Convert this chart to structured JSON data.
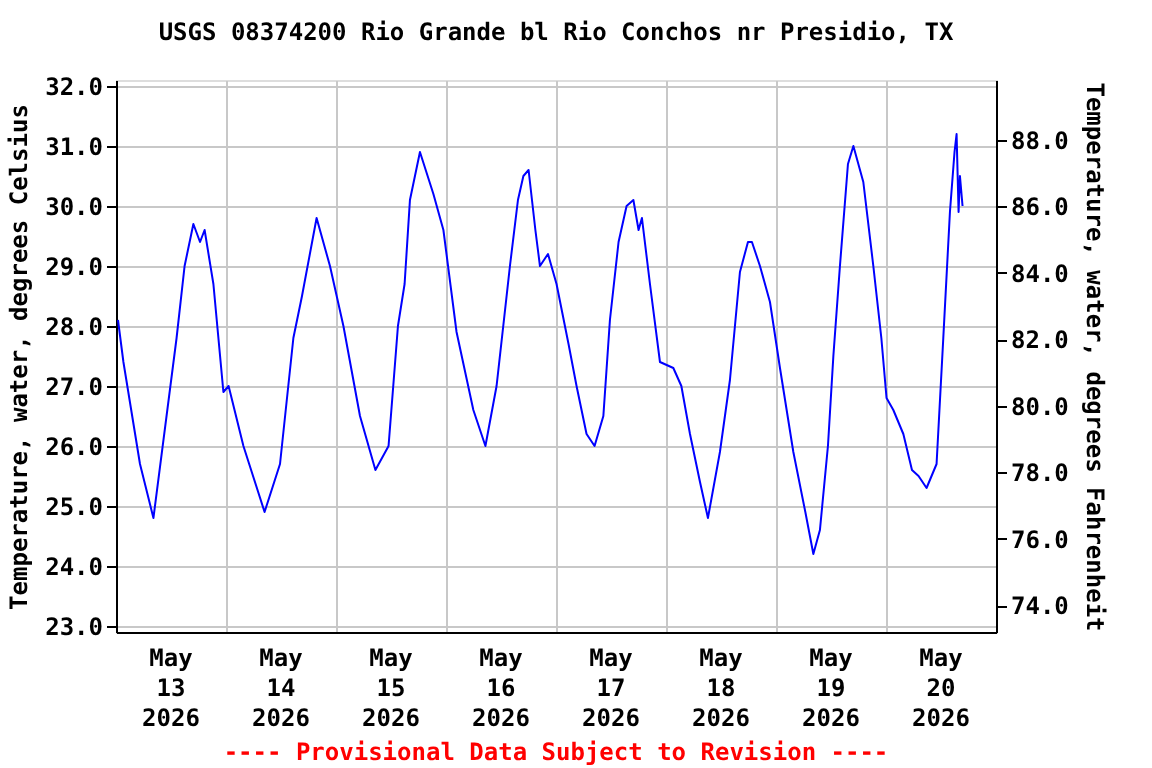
{
  "chart_data": {
    "type": "line",
    "title": "USGS 08374200 Rio Grande bl Rio Conchos nr Presidio, TX",
    "ylabel": "Temperature, water, degrees Celsius",
    "y2label": "Temperature, water, degrees Fahrenheit",
    "annotations": [
      "---- Provisional Data Subject to Revision ----"
    ],
    "grid": true,
    "legend": false,
    "xlim": [
      "2026-05-13T00:00",
      "2026-05-21T00:00"
    ],
    "xticks": [
      {
        "value": "2026-05-13T00:00",
        "label": null
      },
      {
        "value": "2026-05-14T00:00",
        "label": null
      },
      {
        "value": "2026-05-15T00:00",
        "label": null
      },
      {
        "value": "2026-05-16T00:00",
        "label": null
      },
      {
        "value": "2026-05-17T00:00",
        "label": null
      },
      {
        "value": "2026-05-18T00:00",
        "label": null
      },
      {
        "value": "2026-05-19T00:00",
        "label": null
      },
      {
        "value": "2026-05-20T00:00",
        "label": null
      },
      {
        "value": "2026-05-21T00:00",
        "label": null
      },
      {
        "value": "2026-05-13T12:00",
        "label": "May\n13\n2026"
      },
      {
        "value": "2026-05-14T12:00",
        "label": "May\n14\n2026"
      },
      {
        "value": "2026-05-15T12:00",
        "label": "May\n15\n2026"
      },
      {
        "value": "2026-05-16T12:00",
        "label": "May\n16\n2026"
      },
      {
        "value": "2026-05-17T12:00",
        "label": "May\n17\n2026"
      },
      {
        "value": "2026-05-18T12:00",
        "label": "May\n18\n2026"
      },
      {
        "value": "2026-05-19T12:00",
        "label": "May\n19\n2026"
      },
      {
        "value": "2026-05-20T12:00",
        "label": "May\n20\n2026"
      }
    ],
    "ylim": [
      22.9,
      32.1
    ],
    "yticks": [
      {
        "value": 23,
        "label": "23.0"
      },
      {
        "value": 24,
        "label": "24.0"
      },
      {
        "value": 25,
        "label": "25.0"
      },
      {
        "value": 26,
        "label": "26.0"
      },
      {
        "value": 27,
        "label": "27.0"
      },
      {
        "value": 28,
        "label": "28.0"
      },
      {
        "value": 29,
        "label": "29.0"
      },
      {
        "value": 30,
        "label": "30.0"
      },
      {
        "value": 31,
        "label": "31.0"
      },
      {
        "value": 32,
        "label": "32.0"
      }
    ],
    "y2lim": [
      73.2,
      89.8
    ],
    "y2ticks": [
      {
        "value": 74,
        "label": "74.0"
      },
      {
        "value": 76,
        "label": "76.0"
      },
      {
        "value": 78,
        "label": "78.0"
      },
      {
        "value": 80,
        "label": "80.0"
      },
      {
        "value": 82,
        "label": "82.0"
      },
      {
        "value": 84,
        "label": "84.0"
      },
      {
        "value": 86,
        "label": "86.0"
      },
      {
        "value": 88,
        "label": "88.0"
      }
    ],
    "series": [
      {
        "color": "#0000ff",
        "x": [
          "2026-05-13T00:26",
          "2026-05-13T01:37",
          "2026-05-13T05:14",
          "2026-05-13T08:10",
          "2026-05-13T13:13",
          "2026-05-13T14:58",
          "2026-05-13T16:53",
          "2026-05-13T18:20",
          "2026-05-13T19:20",
          "2026-05-13T21:15",
          "2026-05-13T23:26",
          "2026-05-14T00:34",
          "2026-05-14T03:48",
          "2026-05-14T08:25",
          "2026-05-14T11:47",
          "2026-05-14T14:42",
          "2026-05-14T16:35",
          "2026-05-14T19:46",
          "2026-05-14T22:41",
          "2026-05-15T01:37",
          "2026-05-15T05:14",
          "2026-05-15T08:36",
          "2026-05-15T11:28",
          "2026-05-15T13:31",
          "2026-05-15T14:58",
          "2026-05-15T16:08",
          "2026-05-15T18:19",
          "2026-05-15T21:15",
          "2026-05-15T23:26",
          "2026-05-16T02:18",
          "2026-05-16T05:58",
          "2026-05-16T08:36",
          "2026-05-16T11:02",
          "2026-05-16T13:57",
          "2026-05-16T15:42",
          "2026-05-16T16:53",
          "2026-05-16T18:01",
          "2026-05-16T19:30",
          "2026-05-16T20:30",
          "2026-05-16T22:15",
          "2026-05-17T00:07",
          "2026-05-17T02:44",
          "2026-05-17T04:29",
          "2026-05-17T06:40",
          "2026-05-17T08:25",
          "2026-05-17T10:20",
          "2026-05-17T11:46",
          "2026-05-17T13:39",
          "2026-05-17T15:24",
          "2026-05-17T16:53",
          "2026-05-17T18:01",
          "2026-05-17T18:45",
          "2026-05-17T20:30",
          "2026-05-17T22:41",
          "2026-05-18T01:36",
          "2026-05-18T03:21",
          "2026-05-18T05:14",
          "2026-05-18T07:25",
          "2026-05-18T09:09",
          "2026-05-18T11:46",
          "2026-05-18T13:57",
          "2026-05-18T16:08",
          "2026-05-18T17:53",
          "2026-05-18T18:45",
          "2026-05-18T20:30",
          "2026-05-18T22:41",
          "2026-05-19T00:52",
          "2026-05-19T03:47",
          "2026-05-19T06:24",
          "2026-05-19T08:09",
          "2026-05-19T09:35",
          "2026-05-19T11:20",
          "2026-05-19T12:31",
          "2026-05-19T13:57",
          "2026-05-19T15:42",
          "2026-05-19T16:53",
          "2026-05-19T19:03",
          "2026-05-19T21:14",
          "2026-05-19T22:59",
          "2026-05-20T00:07",
          "2026-05-20T01:36",
          "2026-05-20T03:47",
          "2026-05-20T05:40",
          "2026-05-20T07:06",
          "2026-05-20T08:51",
          "2026-05-20T11:02",
          "2026-05-20T12:30",
          "2026-05-20T13:57",
          "2026-05-20T14:57",
          "2026-05-20T15:24",
          "2026-05-20T15:50",
          "2026-05-20T16:08",
          "2026-05-20T16:42"
        ],
        "values": [
          28.1,
          27.4,
          25.7,
          24.8,
          27.8,
          29.0,
          29.7,
          29.4,
          29.6,
          28.7,
          26.9,
          27.0,
          26.0,
          24.9,
          25.7,
          27.8,
          28.5,
          29.8,
          29.0,
          28.0,
          26.5,
          25.6,
          26.0,
          28.0,
          28.7,
          30.1,
          30.9,
          30.2,
          29.6,
          27.9,
          26.6,
          26.0,
          27.0,
          29.0,
          30.1,
          30.5,
          30.6,
          29.6,
          29.0,
          29.2,
          28.7,
          27.7,
          27.0,
          26.2,
          26.0,
          26.5,
          28.1,
          29.4,
          30.0,
          30.1,
          29.6,
          29.8,
          28.7,
          27.4,
          27.3,
          27.0,
          26.2,
          25.4,
          24.8,
          25.9,
          27.1,
          28.9,
          29.4,
          29.4,
          29.0,
          28.4,
          27.3,
          25.9,
          24.9,
          24.2,
          24.6,
          26.0,
          27.5,
          29.0,
          30.7,
          31.0,
          30.4,
          29.0,
          27.8,
          26.8,
          26.6,
          26.2,
          25.6,
          25.5,
          25.3,
          25.7,
          27.8,
          29.9,
          30.9,
          31.2,
          29.9,
          30.5,
          30.0
        ]
      }
    ]
  }
}
